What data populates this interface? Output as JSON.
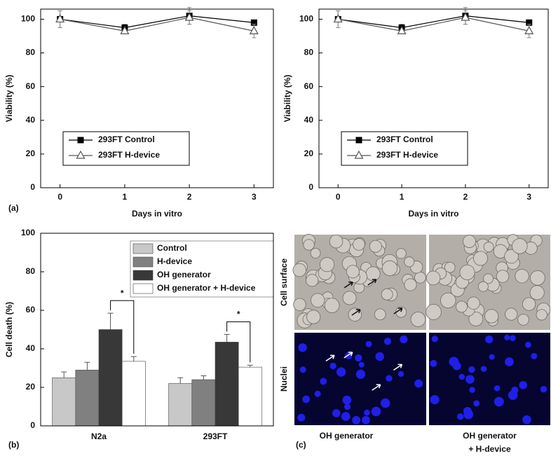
{
  "chart_data": [
    {
      "type": "line",
      "panel_label": "(a)",
      "xlabel": "Days in vitro",
      "ylabel": "Viability (%)",
      "x": [
        0,
        1,
        2,
        3
      ],
      "xlim": [
        -0.3,
        3.3
      ],
      "xticks": [
        0,
        1,
        2,
        3
      ],
      "ylim": [
        0,
        106
      ],
      "yticks": [
        0,
        20,
        40,
        60,
        80,
        100
      ],
      "series": [
        {
          "name": "293FT Control",
          "color": "#000000",
          "marker": "square",
          "values": [
            100,
            95,
            102,
            98
          ],
          "errors": [
            5,
            2,
            5,
            1
          ]
        },
        {
          "name": "293FT H-device",
          "color": "#555555",
          "marker": "triangle",
          "values": [
            100,
            93,
            101,
            93
          ],
          "errors": [
            5,
            1,
            4,
            4
          ]
        }
      ]
    },
    {
      "type": "line",
      "xlabel": "Days in vitro",
      "ylabel": "Viability (%)",
      "x": [
        0,
        1,
        2,
        3
      ],
      "xlim": [
        -0.3,
        3.3
      ],
      "xticks": [
        0,
        1,
        2,
        3
      ],
      "ylim": [
        0,
        106
      ],
      "yticks": [
        0,
        20,
        40,
        60,
        80,
        100
      ],
      "series": [
        {
          "name": "293FT Control",
          "color": "#000000",
          "marker": "square",
          "values": [
            100,
            95,
            102,
            98
          ],
          "errors": [
            5,
            2,
            5,
            1
          ]
        },
        {
          "name": "293FT H-device",
          "color": "#555555",
          "marker": "triangle",
          "values": [
            100,
            93,
            101,
            93
          ],
          "errors": [
            5,
            1,
            4,
            4
          ]
        }
      ]
    },
    {
      "type": "bar",
      "panel_label": "(b)",
      "ylabel": "Cell death (%)",
      "categories": [
        "N2a",
        "293FT"
      ],
      "ylim": [
        0,
        100
      ],
      "yticks": [
        0,
        20,
        40,
        60,
        80,
        100
      ],
      "series": [
        {
          "name": "Control",
          "color": "#c8c8c8",
          "values": [
            25,
            22
          ],
          "errors": [
            3,
            3
          ]
        },
        {
          "name": "H-device",
          "color": "#808080",
          "values": [
            29,
            24
          ],
          "errors": [
            4,
            2
          ]
        },
        {
          "name": "OH generator",
          "color": "#383838",
          "values": [
            50,
            43.5
          ],
          "errors": [
            8.5,
            4
          ]
        },
        {
          "name": "OH generator + H-device",
          "color": "#ffffff",
          "values": [
            33.5,
            30.5
          ],
          "errors": [
            2.5,
            1
          ]
        }
      ],
      "significance": [
        "*",
        "*"
      ]
    }
  ],
  "micrographs": {
    "panel_label": "(c)",
    "rows": [
      "Cell surface",
      "Nuclei"
    ],
    "columns": [
      [
        "OH generator"
      ],
      [
        "OH generator",
        "+ H-device"
      ]
    ]
  }
}
